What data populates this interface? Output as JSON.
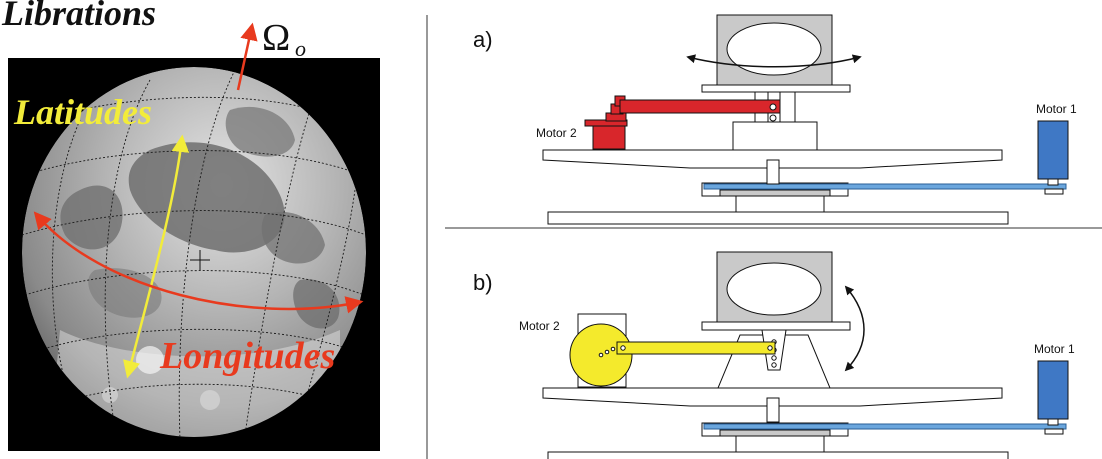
{
  "left_panel": {
    "title": "Librations",
    "omega_symbol": "Ω",
    "omega_subscript": "o",
    "latitudes_label": "Latitudes",
    "longitudes_label": "Longitudes",
    "colors": {
      "latitudes": "#f2ec3a",
      "longitudes": "#e83a1e",
      "omega_arrow": "#e83a1e"
    }
  },
  "right_panel": {
    "diagram_a": {
      "label": "a)",
      "motor_1_label": "Motor 1",
      "motor_2_label": "Motor 2",
      "colors": {
        "arm": "#d8262b",
        "motor_2": "#d8262b",
        "motor_1": "#3f78c5",
        "belt": "#6aa6dd",
        "housing": "#c9c9c9"
      }
    },
    "diagram_b": {
      "label": "b)",
      "motor_1_label": "Motor 1",
      "motor_2_label": "Motor 2",
      "colors": {
        "arm": "#f4ea2c",
        "wheel": "#f4ea2c",
        "motor_1": "#3f78c5",
        "belt": "#6aa6dd",
        "housing": "#c9c9c9"
      }
    }
  }
}
